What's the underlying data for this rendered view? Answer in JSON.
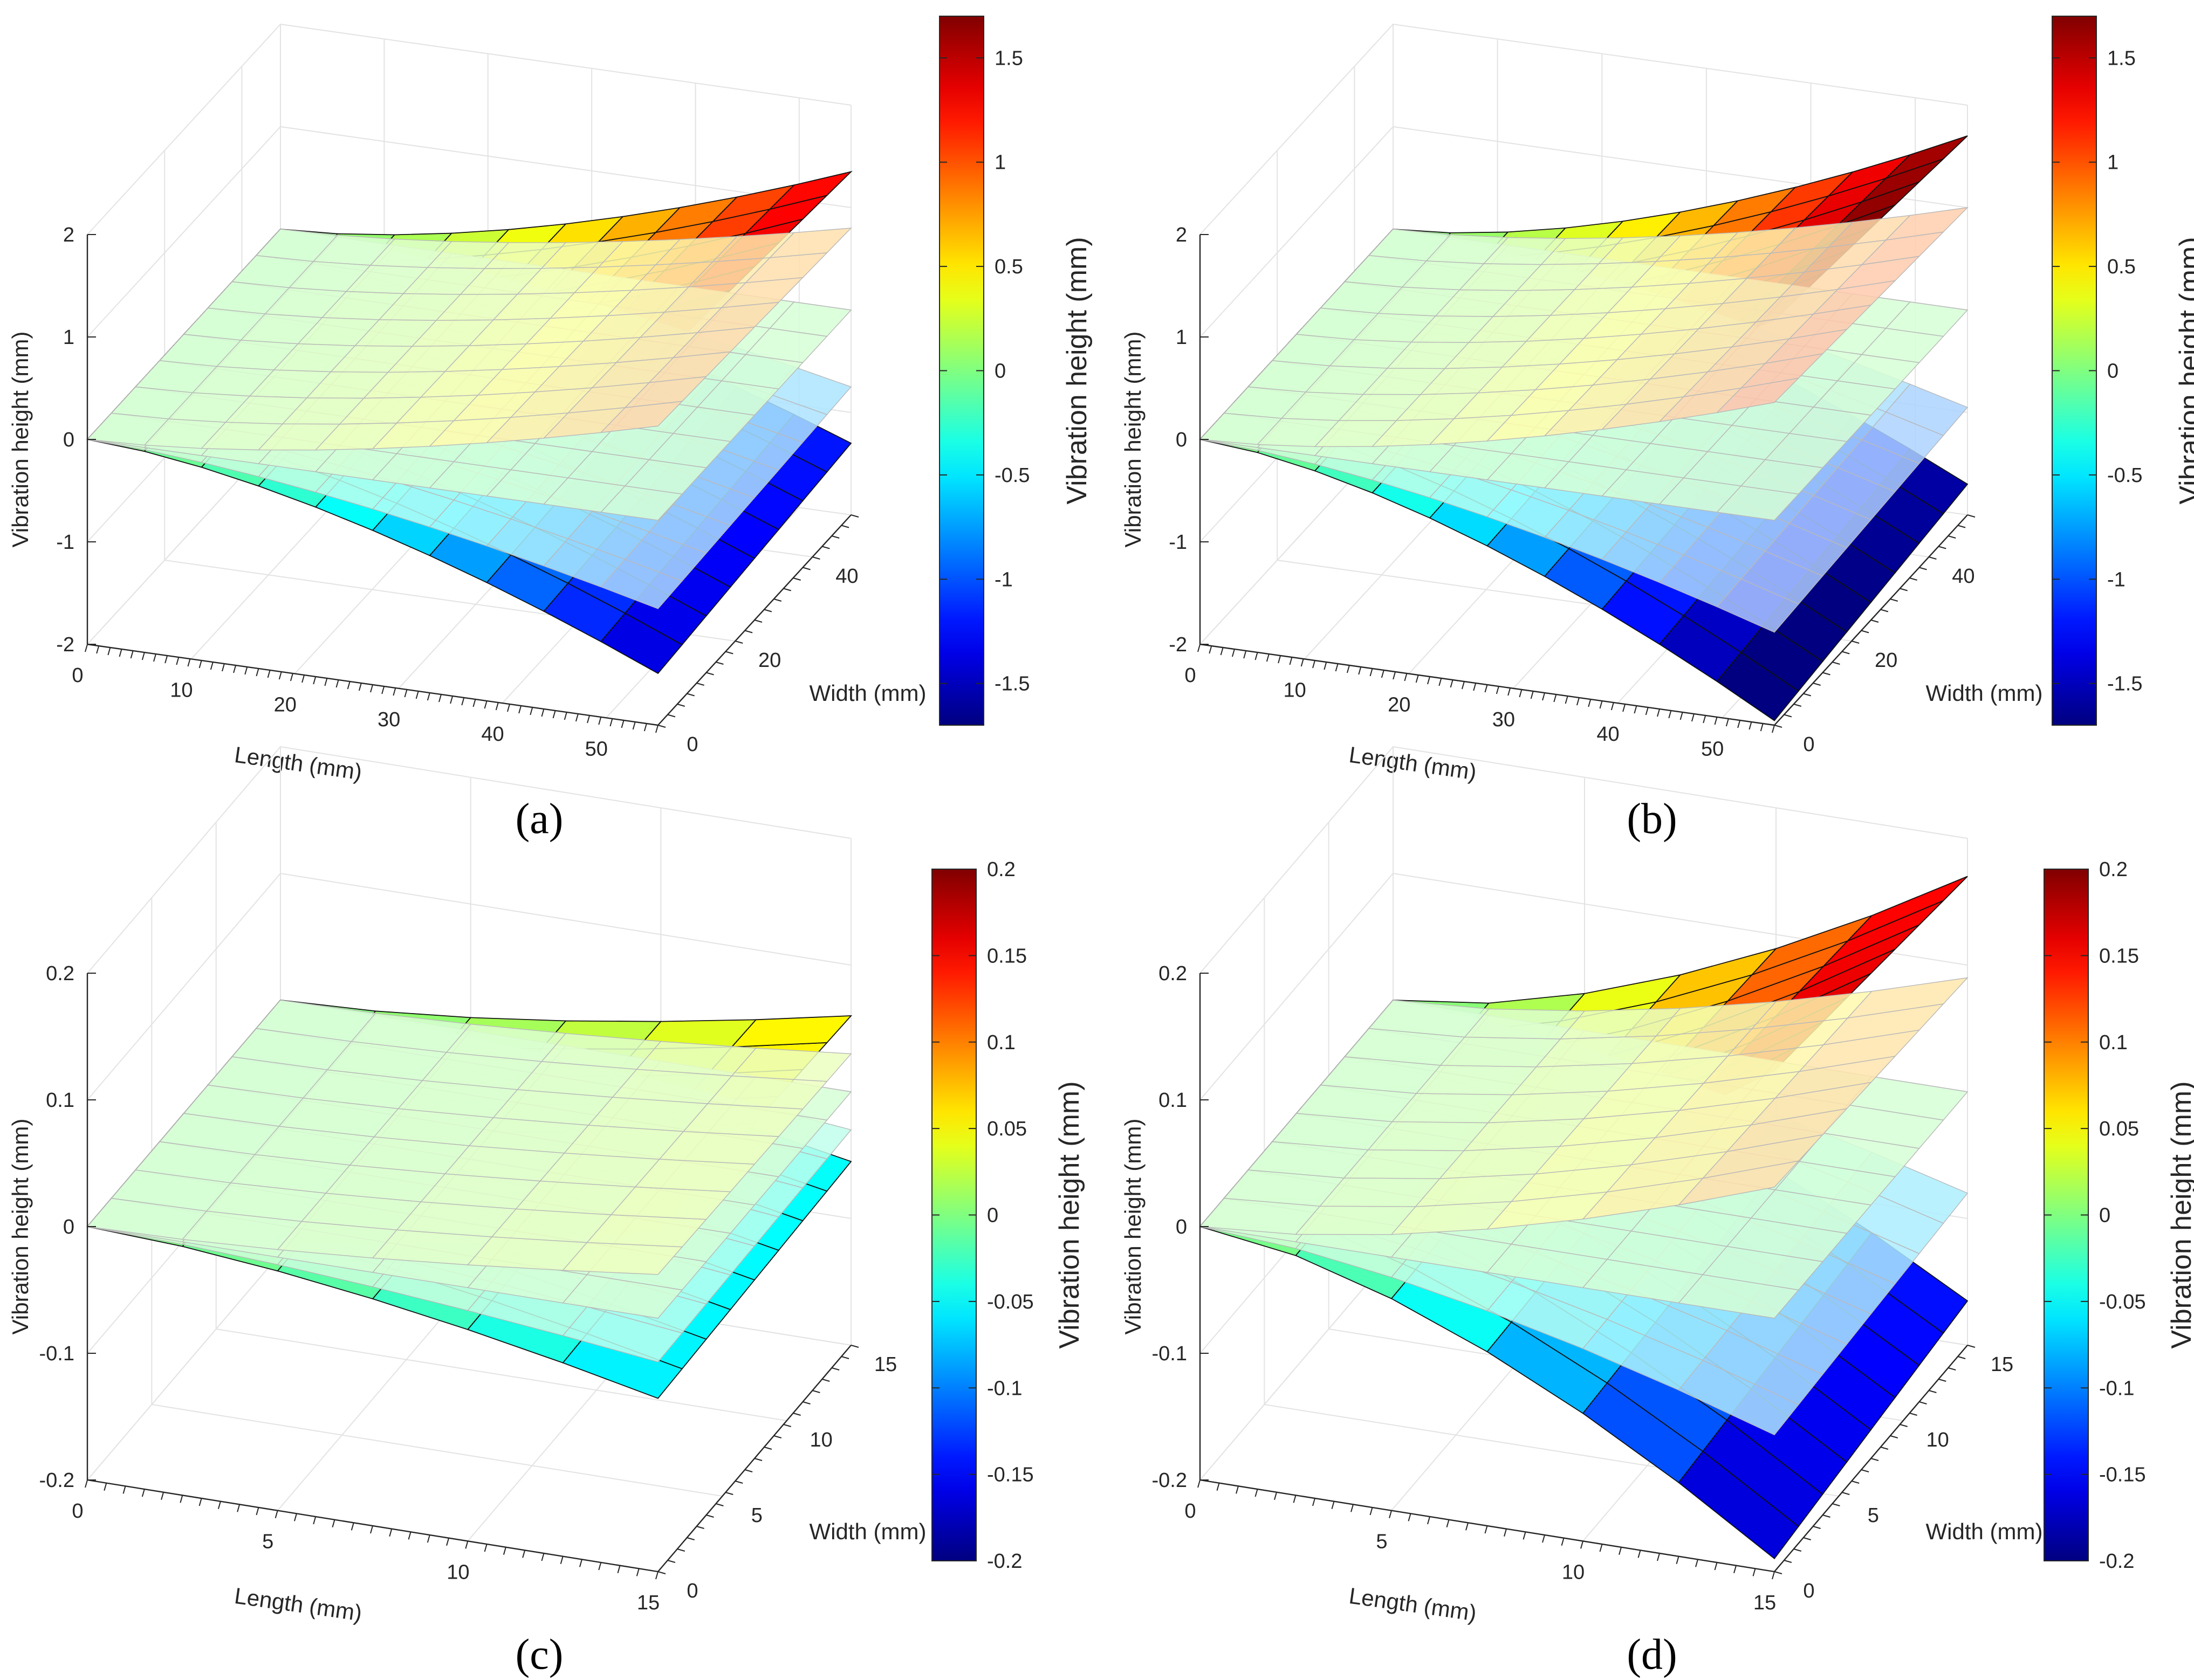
{
  "figure": {
    "panels": [
      {
        "label": "(a)"
      },
      {
        "label": "(b)"
      },
      {
        "label": "(c)"
      },
      {
        "label": "(d)"
      }
    ]
  },
  "chart_data": [
    {
      "type": "surface",
      "panel": "(a)",
      "xlabel": "Length (mm)",
      "ylabel": "Width (mm)",
      "zlabel": "Vibration height (mm)",
      "xlim": [
        0,
        55
      ],
      "ylim": [
        0,
        50
      ],
      "zlim": [
        -2,
        2
      ],
      "xticks": [
        "0",
        "10",
        "20",
        "30",
        "40",
        "50"
      ],
      "xtick_values": [
        0,
        10,
        20,
        30,
        40,
        50
      ],
      "yticks": [
        "0",
        "20",
        "40"
      ],
      "ytick_values": [
        0,
        20,
        40
      ],
      "zticks": [
        "-2",
        "-1",
        "0",
        "1",
        "2"
      ],
      "ztick_values": [
        -2,
        -1,
        0,
        1,
        2
      ],
      "x_divisions": 10,
      "y_divisions": 8,
      "surfaces": [
        {
          "name": "surface 1",
          "edge_heights": [
            0.0,
            1.35
          ],
          "style": "opaque"
        },
        {
          "name": "surface 2",
          "edge_heights": [
            0.0,
            0.8
          ],
          "style": "translucent"
        },
        {
          "name": "surface 3",
          "edge_heights": [
            0.0,
            0.0
          ],
          "style": "translucent"
        },
        {
          "name": "surface 4",
          "edge_heights": [
            0.0,
            -0.75
          ],
          "style": "translucent"
        },
        {
          "name": "surface 5",
          "edge_heights": [
            0.0,
            -1.3
          ],
          "style": "opaque"
        }
      ],
      "colorbar": {
        "label": "Vibration height (mm)",
        "range": [
          -1.7,
          1.7
        ],
        "ticks": [
          "-1.5",
          "-1",
          "-0.5",
          "0",
          "0.5",
          "1",
          "1.5"
        ],
        "tick_values": [
          -1.5,
          -1,
          -0.5,
          0,
          0.5,
          1,
          1.5
        ]
      }
    },
    {
      "type": "surface",
      "panel": "(b)",
      "xlabel": "Length (mm)",
      "ylabel": "Width (mm)",
      "zlabel": "Vibration height (mm)",
      "xlim": [
        0,
        55
      ],
      "ylim": [
        0,
        50
      ],
      "zlim": [
        -2,
        2
      ],
      "xticks": [
        "0",
        "10",
        "20",
        "30",
        "40",
        "50"
      ],
      "xtick_values": [
        0,
        10,
        20,
        30,
        40,
        50
      ],
      "yticks": [
        "0",
        "20",
        "40"
      ],
      "ytick_values": [
        0,
        20,
        40
      ],
      "zticks": [
        "-2",
        "-1",
        "0",
        "1",
        "2"
      ],
      "ztick_values": [
        -2,
        -1,
        0,
        1,
        2
      ],
      "x_divisions": 10,
      "y_divisions": 8,
      "surfaces": [
        {
          "name": "surface 1",
          "edge_heights": [
            0.0,
            1.7
          ],
          "style": "opaque"
        },
        {
          "name": "surface 2",
          "edge_heights": [
            0.0,
            1.0
          ],
          "style": "translucent"
        },
        {
          "name": "surface 3",
          "edge_heights": [
            0.0,
            0.0
          ],
          "style": "translucent"
        },
        {
          "name": "surface 4",
          "edge_heights": [
            0.0,
            -0.95
          ],
          "style": "translucent"
        },
        {
          "name": "surface 5",
          "edge_heights": [
            0.0,
            -1.7
          ],
          "style": "opaque"
        }
      ],
      "colorbar": {
        "label": "Vibration height (mm)",
        "range": [
          -1.7,
          1.7
        ],
        "ticks": [
          "-1.5",
          "-1",
          "-0.5",
          "0",
          "0.5",
          "1",
          "1.5"
        ],
        "tick_values": [
          -1.5,
          -1,
          -0.5,
          0,
          0.5,
          1,
          1.5
        ]
      }
    },
    {
      "type": "surface",
      "panel": "(c)",
      "xlabel": "Length (mm)",
      "ylabel": "Width (mm)",
      "zlabel": "Vibration height (mm)",
      "xlim": [
        0,
        15
      ],
      "ylim": [
        0,
        15
      ],
      "zlim": [
        -0.2,
        0.2
      ],
      "xticks": [
        "0",
        "5",
        "10",
        "15"
      ],
      "xtick_values": [
        0,
        5,
        10,
        15
      ],
      "yticks": [
        "0",
        "5",
        "10",
        "15"
      ],
      "ytick_values": [
        0,
        5,
        10,
        15
      ],
      "zticks": [
        "-0.2",
        "-0.1",
        "0",
        "0.1",
        "0.2"
      ],
      "ztick_values": [
        -0.2,
        -0.1,
        0,
        0.1,
        0.2
      ],
      "x_divisions": 6,
      "y_divisions": 8,
      "surfaces": [
        {
          "name": "surface 1",
          "edge_heights": [
            0.0,
            0.06
          ],
          "style": "opaque"
        },
        {
          "name": "surface 2",
          "edge_heights": [
            0.0,
            0.03
          ],
          "style": "translucent"
        },
        {
          "name": "surface 3",
          "edge_heights": [
            0.0,
            0.0
          ],
          "style": "translucent"
        },
        {
          "name": "surface 4",
          "edge_heights": [
            0.0,
            -0.03
          ],
          "style": "translucent"
        },
        {
          "name": "surface 5",
          "edge_heights": [
            0.0,
            -0.055
          ],
          "style": "opaque"
        }
      ],
      "colorbar": {
        "label": "Vibration height (mm)",
        "range": [
          -0.2,
          0.2
        ],
        "ticks": [
          "-0.2",
          "-0.15",
          "-0.1",
          "-0.05",
          "0",
          "0.05",
          "0.1",
          "0.15",
          "0.2"
        ],
        "tick_values": [
          -0.2,
          -0.15,
          -0.1,
          -0.05,
          0,
          0.05,
          0.1,
          0.15,
          0.2
        ]
      }
    },
    {
      "type": "surface",
      "panel": "(d)",
      "xlabel": "Length (mm)",
      "ylabel": "Width (mm)",
      "zlabel": "Vibration height (mm)",
      "xlim": [
        0,
        15
      ],
      "ylim": [
        0,
        15
      ],
      "zlim": [
        -0.2,
        0.2
      ],
      "xticks": [
        "0",
        "5",
        "10",
        "15"
      ],
      "xtick_values": [
        0,
        5,
        10,
        15
      ],
      "yticks": [
        "0",
        "5",
        "10",
        "15"
      ],
      "ytick_values": [
        0,
        5,
        10,
        15
      ],
      "zticks": [
        "-0.2",
        "-0.1",
        "0",
        "0.1",
        "0.2"
      ],
      "ztick_values": [
        -0.2,
        -0.1,
        0,
        0.1,
        0.2
      ],
      "x_divisions": 6,
      "y_divisions": 8,
      "surfaces": [
        {
          "name": "surface 1",
          "edge_heights": [
            0.0,
            0.17
          ],
          "style": "opaque"
        },
        {
          "name": "surface 2",
          "edge_heights": [
            0.0,
            0.09
          ],
          "style": "translucent"
        },
        {
          "name": "surface 3",
          "edge_heights": [
            0.0,
            0.0
          ],
          "style": "translucent"
        },
        {
          "name": "surface 4",
          "edge_heights": [
            0.0,
            -0.08
          ],
          "style": "translucent"
        },
        {
          "name": "surface 5",
          "edge_heights": [
            0.0,
            -0.165
          ],
          "style": "opaque"
        }
      ],
      "colorbar": {
        "label": "Vibration height (mm)",
        "range": [
          -0.2,
          0.2
        ],
        "ticks": [
          "-0.2",
          "-0.15",
          "-0.1",
          "-0.05",
          "0",
          "0.05",
          "0.1",
          "0.15",
          "0.2"
        ],
        "tick_values": [
          -0.2,
          -0.15,
          -0.1,
          -0.05,
          0,
          0.05,
          0.1,
          0.15,
          0.2
        ]
      }
    }
  ]
}
